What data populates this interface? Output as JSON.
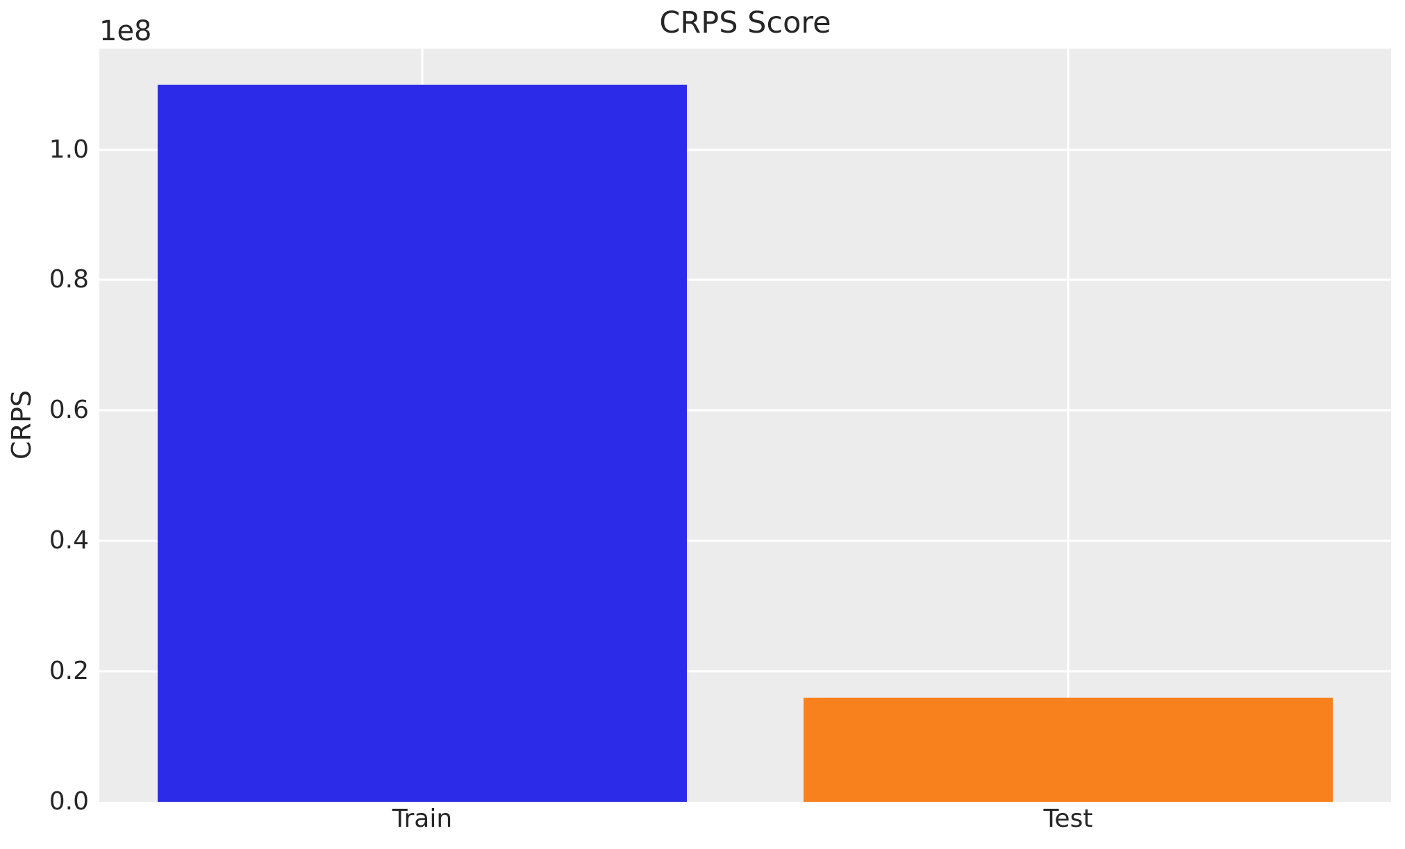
{
  "figure": {
    "background": "#FFFFFF",
    "text_color": "#262626"
  },
  "chart_data": {
    "type": "bar",
    "title": "CRPS Score",
    "ylabel": "CRPS",
    "xlabel": "",
    "y_offset_label": "1e8",
    "categories": [
      "Train",
      "Test"
    ],
    "values": [
      110000000,
      16000000
    ],
    "values_in_1e8": [
      1.1,
      0.16
    ],
    "bar_colors": [
      "#2C2CE8",
      "#F8811E"
    ],
    "ylim": [
      0,
      115500000
    ],
    "yticks": [
      0,
      20000000,
      40000000,
      60000000,
      80000000,
      100000000
    ],
    "ytick_labels": [
      "0.0",
      "0.2",
      "0.4",
      "0.6",
      "0.8",
      "1.0"
    ],
    "grid": true,
    "legend": false,
    "plot_background": "#ECECEC",
    "gridline_color": "#FFFFFF"
  }
}
